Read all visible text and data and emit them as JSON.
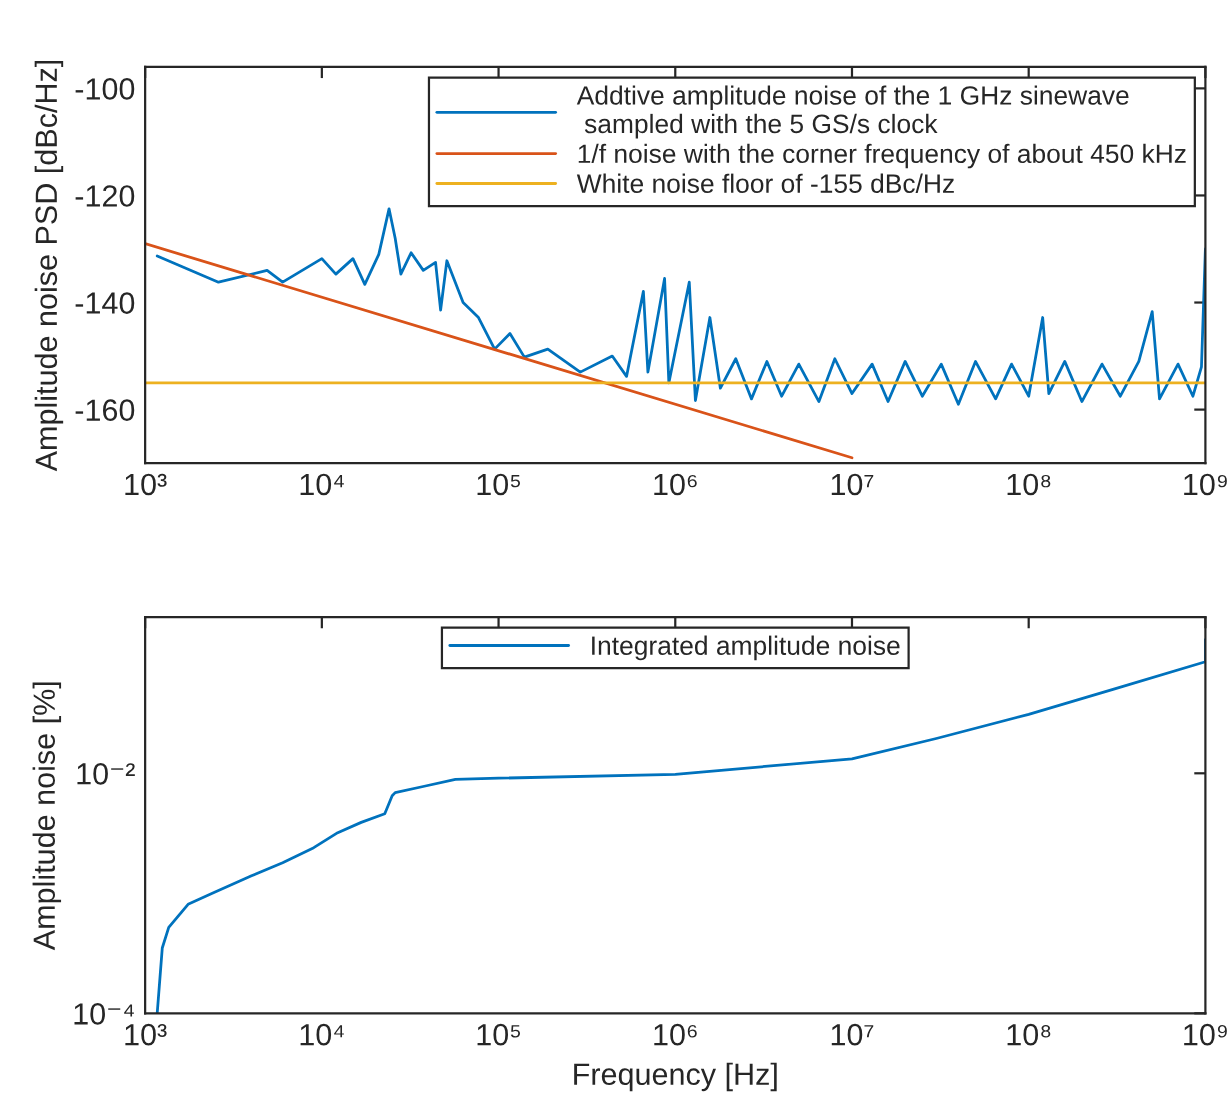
{
  "chart_data": [
    {
      "type": "line",
      "ylabel": "Amplitude noise PSD [dBc/Hz]",
      "log": "x",
      "legend": "top right",
      "grid": false,
      "xlim": [
        1000,
        1000000000
      ],
      "xticks": [
        {
          "value": 1000,
          "label": "10³"
        },
        {
          "value": 10000,
          "label": "10⁴"
        },
        {
          "value": 100000,
          "label": "10⁵"
        },
        {
          "value": 1000000,
          "label": "10⁶"
        },
        {
          "value": 10000000,
          "label": "10⁷"
        },
        {
          "value": 100000000,
          "label": "10⁸"
        },
        {
          "value": 1000000000,
          "label": "10⁹"
        }
      ],
      "ylim": [
        -170,
        -96
      ],
      "yticks": [
        -160,
        -140,
        -120,
        -100
      ],
      "series": [
        {
          "name": "Addtive amplitude noise of the 1 GHz sinewave\n sampled with the 5 GS/s clock",
          "color": "#0072bd",
          "x": [
            1170,
            2600,
            4900,
            6000,
            10000,
            12000,
            15000,
            17500,
            21000,
            24000,
            26000,
            28000,
            32000,
            37500,
            44000,
            47000,
            51000,
            63000,
            77000,
            95000,
            116000,
            140000,
            190000,
            290000,
            440000,
            530000,
            660000,
            700000,
            870000,
            920000,
            1200000,
            1300000,
            1570000,
            1800000,
            2200000,
            2700000,
            3300000,
            4000000,
            5000000,
            6500000,
            8000000,
            10000000,
            13000000,
            16000000,
            20000000,
            25000000,
            32000000,
            40000000,
            50000000,
            65000000,
            80000000,
            100000000,
            120000000,
            130000000,
            160000000,
            200000000,
            260000000,
            330000000,
            420000000,
            500000000,
            550000000,
            700000000,
            850000000,
            950000000,
            1000000000
          ],
          "values": [
            -131.3,
            -136.2,
            -134,
            -136.2,
            -131.8,
            -134.7,
            -131.8,
            -136.6,
            -131,
            -122.5,
            -128,
            -134.7,
            -130.7,
            -134,
            -132.5,
            -141.4,
            -132.2,
            -140,
            -142.8,
            -148.7,
            -145.8,
            -150.2,
            -148.7,
            -153,
            -150,
            -153.8,
            -137.9,
            -153,
            -135.5,
            -155,
            -136.2,
            -158.3,
            -142.8,
            -156,
            -150.5,
            -158,
            -151,
            -157.5,
            -151.5,
            -158.5,
            -150.5,
            -157,
            -151.5,
            -158.5,
            -151,
            -157.5,
            -151.5,
            -159,
            -151,
            -158,
            -151.5,
            -157.5,
            -142.8,
            -157,
            -151,
            -158.5,
            -151.5,
            -157.5,
            -151,
            -141.7,
            -158,
            -151.5,
            -157.5,
            -152,
            -130
          ]
        },
        {
          "name": "1/f noise with the corner frequency of about 450 kHz",
          "color": "#d95319",
          "x": [
            1000,
            10000000
          ],
          "values": [
            -129,
            -169
          ]
        },
        {
          "name": "White noise floor of -155 dBc/Hz",
          "color": "#edb120",
          "x": [
            1000,
            1000000000
          ],
          "values": [
            -155,
            -155
          ]
        }
      ]
    },
    {
      "type": "line",
      "xlabel": "Frequency [Hz]",
      "ylabel": "Amplitude noise [%]",
      "log": "xy",
      "legend": "top",
      "grid": false,
      "xlim": [
        1000,
        1000000000
      ],
      "xticks": [
        {
          "value": 1000,
          "label": "10³"
        },
        {
          "value": 10000,
          "label": "10⁴"
        },
        {
          "value": 100000,
          "label": "10⁵"
        },
        {
          "value": 1000000,
          "label": "10⁶"
        },
        {
          "value": 10000000,
          "label": "10⁷"
        },
        {
          "value": 100000000,
          "label": "10⁸"
        },
        {
          "value": 1000000000,
          "label": "10⁹"
        }
      ],
      "ylim": [
        0.0001,
        0.2
      ],
      "yticks": [
        {
          "value": 0.0001,
          "label": "10⁻⁴"
        },
        {
          "value": 0.01,
          "label": "10⁻²"
        }
      ],
      "series": [
        {
          "name": "Integrated amplitude noise",
          "color": "#0072bd",
          "x": [
            1170,
            1250,
            1360,
            1750,
            2400,
            4000,
            6000,
            9000,
            12300,
            16700,
            22700,
            25000,
            26000,
            38000,
            57000,
            100000,
            1000000,
            10000000,
            30000000,
            100000000,
            300000000,
            1000000000,
            1000000000
          ],
          "values": [
            0.0001,
            0.00035,
            0.00052,
            0.00081,
            0.001,
            0.0014,
            0.0018,
            0.0024,
            0.0032,
            0.0039,
            0.0046,
            0.0065,
            0.0069,
            0.0078,
            0.0089,
            0.0091,
            0.0098,
            0.0132,
            0.0195,
            0.031,
            0.05,
            0.085,
            0.13
          ]
        }
      ]
    }
  ]
}
